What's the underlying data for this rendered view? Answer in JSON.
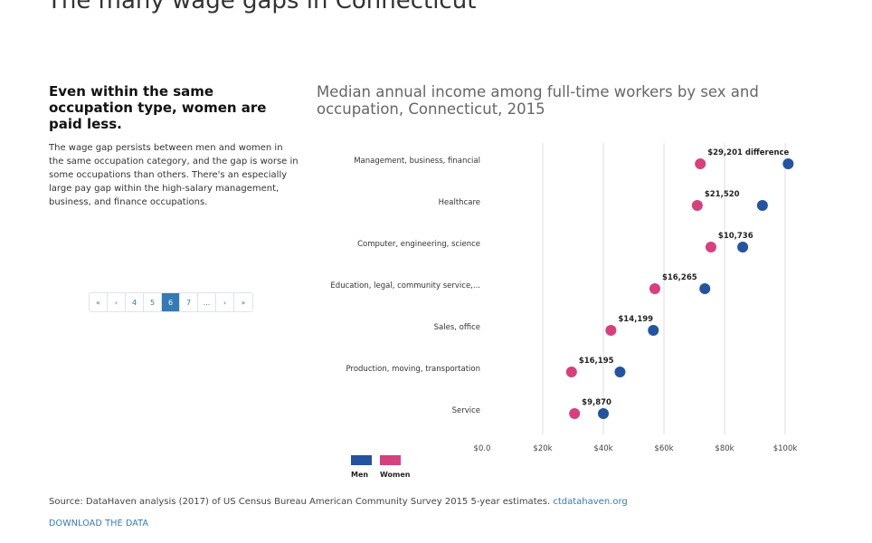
{
  "page": {
    "title": "The many wage gaps in Connecticut"
  },
  "panel": {
    "heading": "Even within the same occupation type, women are paid less.",
    "body": "The wage gap persists between men and women in the same occupation category, and the gap is worse in some occupations than others. There's an especially large pay gap within the high-salary management, business, and finance occupations."
  },
  "pager": {
    "first": "«",
    "prev": "‹",
    "p4": "4",
    "p5": "5",
    "p6": "6",
    "p7": "7",
    "ellipsis": "...",
    "next": "›",
    "last": "»",
    "current": 6
  },
  "footer": {
    "source_text": "Source: DataHaven analysis (2017) of US Census Bureau American Community Survey 2015 5-year estimates.",
    "source_link": "ctdatahaven.org",
    "download": "DOWNLOAD THE DATA"
  },
  "chart_data": {
    "type": "scatter",
    "title": "Median annual income among full-time workers by sex and occupation, Connecticut, 2015",
    "xlabel": "",
    "ylabel": "",
    "xlim": [
      0,
      100000
    ],
    "x_ticks": [
      {
        "value": 0,
        "label": "$0.0"
      },
      {
        "value": 20000,
        "label": "$20k"
      },
      {
        "value": 40000,
        "label": "$40k"
      },
      {
        "value": 60000,
        "label": "$60k"
      },
      {
        "value": 80000,
        "label": "$80k"
      },
      {
        "value": 100000,
        "label": "$100k"
      }
    ],
    "grid": "vertical",
    "legend": {
      "placement": "bottom-left"
    },
    "series": [
      {
        "name": "Men",
        "color": "#2453a0"
      },
      {
        "name": "Women",
        "color": "#d6407d"
      }
    ],
    "categories": [
      {
        "label": "Management, business, financial",
        "men": 101000,
        "women": 72000,
        "gap_label": "$29,201 difference"
      },
      {
        "label": "Healthcare",
        "men": 92500,
        "women": 71000,
        "gap_label": "$21,520"
      },
      {
        "label": "Computer, engineering, science",
        "men": 86000,
        "women": 75500,
        "gap_label": "$10,736"
      },
      {
        "label": "Education, legal, community service,...",
        "men": 73500,
        "women": 57000,
        "gap_label": "$16,265"
      },
      {
        "label": "Sales, office",
        "men": 56500,
        "women": 42500,
        "gap_label": "$14,199"
      },
      {
        "label": "Production, moving, transportation",
        "men": 45500,
        "women": 29500,
        "gap_label": "$16,195"
      },
      {
        "label": "Service",
        "men": 40000,
        "women": 30500,
        "gap_label": "$9,870"
      }
    ]
  }
}
